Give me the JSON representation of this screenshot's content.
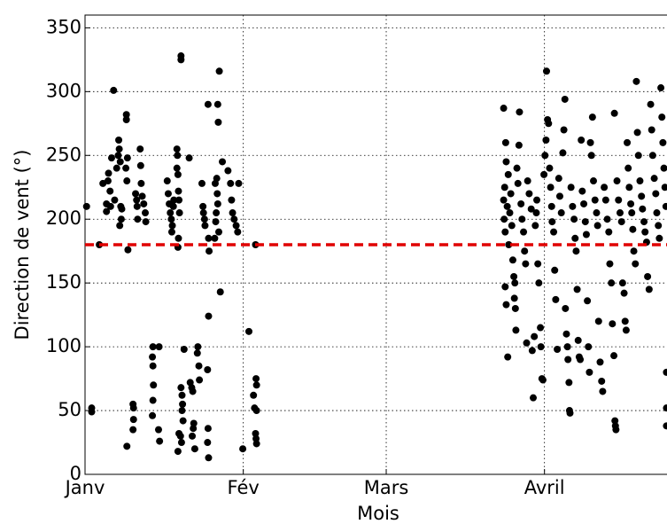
{
  "chart_data": {
    "type": "scatter",
    "xlabel": "Mois",
    "ylabel": "Direction de vent (°)",
    "xlim": [
      0,
      114
    ],
    "ylim": [
      0,
      360
    ],
    "xticks": [
      {
        "value": 0,
        "label": "Janv"
      },
      {
        "value": 31,
        "label": "Fév"
      },
      {
        "value": 59,
        "label": "Mars"
      },
      {
        "value": 90,
        "label": "Avril"
      }
    ],
    "yticks": [
      0,
      50,
      100,
      150,
      200,
      250,
      300,
      350
    ],
    "grid": true,
    "color": "#000000",
    "reference_line": {
      "value": 180,
      "color": "#e00000"
    },
    "x": [
      0.3,
      1.3,
      1.3,
      2.8,
      3.5,
      4.2,
      4.2,
      4.5,
      4.6,
      4.9,
      5.0,
      5.2,
      5.6,
      5.8,
      6.2,
      6.5,
      6.6,
      6.7,
      6.9,
      7.0,
      7.1,
      6.8,
      7.2,
      8.1,
      8.1,
      8.0,
      8.2,
      8.3,
      8.4,
      8.2,
      9.4,
      9.5,
      9.5,
      9.4,
      9.9,
      10.1,
      10.2,
      10.3,
      10.8,
      10.9,
      11.0,
      11.2,
      11.5,
      11.8,
      11.9,
      13.3,
      13.2,
      13.3,
      13.4,
      13.3,
      13.2,
      14.5,
      14.4,
      14.6,
      16.1,
      16.3,
      16.5,
      16.7,
      16.9,
      17.1,
      17.3,
      17.4,
      17.0,
      18.0,
      18.1,
      18.0,
      18.2,
      18.3,
      18.4,
      18.5,
      18.3,
      18.2,
      18.8,
      18.8,
      18.4,
      18.7,
      18.9,
      18.2,
      18.8,
      19.0,
      19.1,
      19.0,
      19.2,
      19.4,
      20.4,
      20.6,
      20.9,
      21.1,
      21.3,
      21.2,
      21.0,
      21.5,
      22.1,
      22.0,
      22.3,
      22.4,
      22.9,
      23.1,
      23.2,
      23.4,
      23.5,
      24.1,
      24.2,
      24.3,
      24.2,
      24.0,
      24.1,
      24.0,
      24.2,
      26.3,
      26.0,
      26.1,
      25.8,
      25.5,
      25.9,
      26.0,
      25.7,
      25.6,
      26.2,
      25.4,
      26.5,
      26.9,
      28.0,
      28.5,
      28.7,
      28.9,
      29.2,
      29.6,
      29.9,
      30.1,
      30.9,
      32.1,
      33.4,
      33.5,
      33.6,
      33.0,
      33.2,
      33.6,
      33.4,
      33.5,
      33.6,
      82.0,
      82.1,
      82.2,
      82.3,
      82.0,
      82.4,
      82.5,
      82.3,
      82.5,
      82.8,
      82.7,
      82.9,
      83.2,
      83.0,
      83.4,
      83.6,
      83.8,
      84.0,
      84.2,
      84.1,
      84.3,
      84.4,
      84.6,
      84.8,
      85.1,
      85.0,
      85.4,
      85.6,
      85.9,
      86.1,
      86.3,
      86.5,
      86.7,
      87.0,
      87.4,
      87.6,
      87.8,
      88.0,
      88.2,
      88.4,
      88.5,
      88.7,
      88.9,
      89.2,
      89.3,
      89.5,
      89.7,
      89.9,
      90.1,
      90.3,
      90.4,
      90.6,
      90.8,
      91.0,
      91.2,
      91.4,
      91.5,
      91.8,
      92.0,
      92.2,
      92.5,
      92.8,
      93.0,
      93.3,
      93.6,
      93.8,
      94.0,
      94.1,
      94.3,
      94.5,
      94.6,
      94.8,
      94.9,
      95.0,
      95.2,
      95.5,
      95.8,
      96.0,
      96.2,
      96.4,
      96.6,
      96.8,
      97.0,
      97.2,
      97.4,
      97.7,
      98.0,
      98.2,
      98.4,
      98.6,
      98.8,
      99.0,
      99.2,
      99.4,
      99.6,
      99.9,
      100.2,
      100.4,
      100.6,
      100.9,
      101.2,
      101.4,
      101.7,
      102.0,
      102.3,
      102.6,
      102.8,
      103.1,
      103.3,
      103.6,
      103.7,
      103.8,
      103.9,
      104.0,
      104.2,
      104.5,
      104.8,
      105.1,
      105.3,
      105.6,
      105.8,
      106.0,
      106.2,
      106.4,
      106.6,
      106.9,
      107.1,
      107.3,
      107.5,
      107.8,
      108.0,
      108.2,
      108.4,
      108.7,
      109.0,
      109.2,
      109.5,
      109.7,
      110.0,
      110.2,
      110.5,
      110.8,
      111.0,
      111.2,
      111.5,
      111.8,
      112.0,
      112.3,
      112.5,
      112.8,
      113.0,
      113.2,
      113.4,
      113.6,
      113.8,
      113.9,
      113.9,
      113.9
    ],
    "values": [
      210,
      52,
      49,
      180,
      228,
      212,
      206,
      230,
      236,
      222,
      210,
      248,
      301,
      215,
      240,
      250,
      262,
      255,
      245,
      210,
      200,
      195,
      208,
      282,
      278,
      240,
      230,
      248,
      176,
      22,
      55,
      52,
      43,
      35,
      220,
      215,
      210,
      200,
      255,
      242,
      228,
      218,
      212,
      205,
      198,
      100,
      92,
      85,
      70,
      58,
      46,
      100,
      35,
      26,
      230,
      220,
      212,
      205,
      200,
      195,
      210,
      215,
      190,
      255,
      250,
      240,
      235,
      222,
      215,
      205,
      185,
      178,
      328,
      325,
      32,
      30,
      25,
      18,
      68,
      62,
      55,
      50,
      42,
      98,
      248,
      72,
      68,
      65,
      40,
      36,
      30,
      20,
      100,
      95,
      85,
      74,
      228,
      210,
      205,
      200,
      195,
      290,
      185,
      175,
      124,
      82,
      36,
      25,
      13,
      316,
      290,
      276,
      232,
      228,
      220,
      212,
      205,
      198,
      190,
      185,
      143,
      245,
      238,
      228,
      215,
      205,
      200,
      195,
      190,
      228,
      20,
      112,
      180,
      75,
      70,
      62,
      52,
      50,
      32,
      28,
      24,
      215,
      200,
      225,
      190,
      287,
      260,
      245,
      147,
      133,
      92,
      210,
      235,
      205,
      180,
      220,
      195,
      168,
      155,
      150,
      138,
      130,
      113,
      240,
      228,
      284,
      258,
      212,
      200,
      190,
      175,
      165,
      103,
      230,
      220,
      208,
      97,
      60,
      108,
      195,
      205,
      215,
      165,
      150,
      115,
      100,
      75,
      74,
      235,
      250,
      262,
      316,
      278,
      275,
      240,
      225,
      210,
      198,
      190,
      160,
      137,
      98,
      232,
      218,
      205,
      252,
      270,
      294,
      130,
      110,
      100,
      90,
      72,
      50,
      48,
      225,
      210,
      200,
      185,
      175,
      145,
      105,
      92,
      90,
      262,
      222,
      212,
      198,
      188,
      136,
      100,
      80,
      260,
      250,
      280,
      230,
      215,
      205,
      195,
      120,
      88,
      73,
      65,
      225,
      215,
      200,
      190,
      165,
      150,
      118,
      93,
      283,
      42,
      38,
      35,
      230,
      215,
      205,
      198,
      150,
      142,
      120,
      113,
      260,
      240,
      225,
      212,
      205,
      192,
      175,
      165,
      308,
      268,
      250,
      230,
      218,
      208,
      198,
      190,
      182,
      155,
      145,
      290,
      270,
      250,
      232,
      220,
      205,
      195,
      185,
      303,
      280,
      260,
      240,
      225,
      210,
      80,
      52,
      38
    ]
  }
}
